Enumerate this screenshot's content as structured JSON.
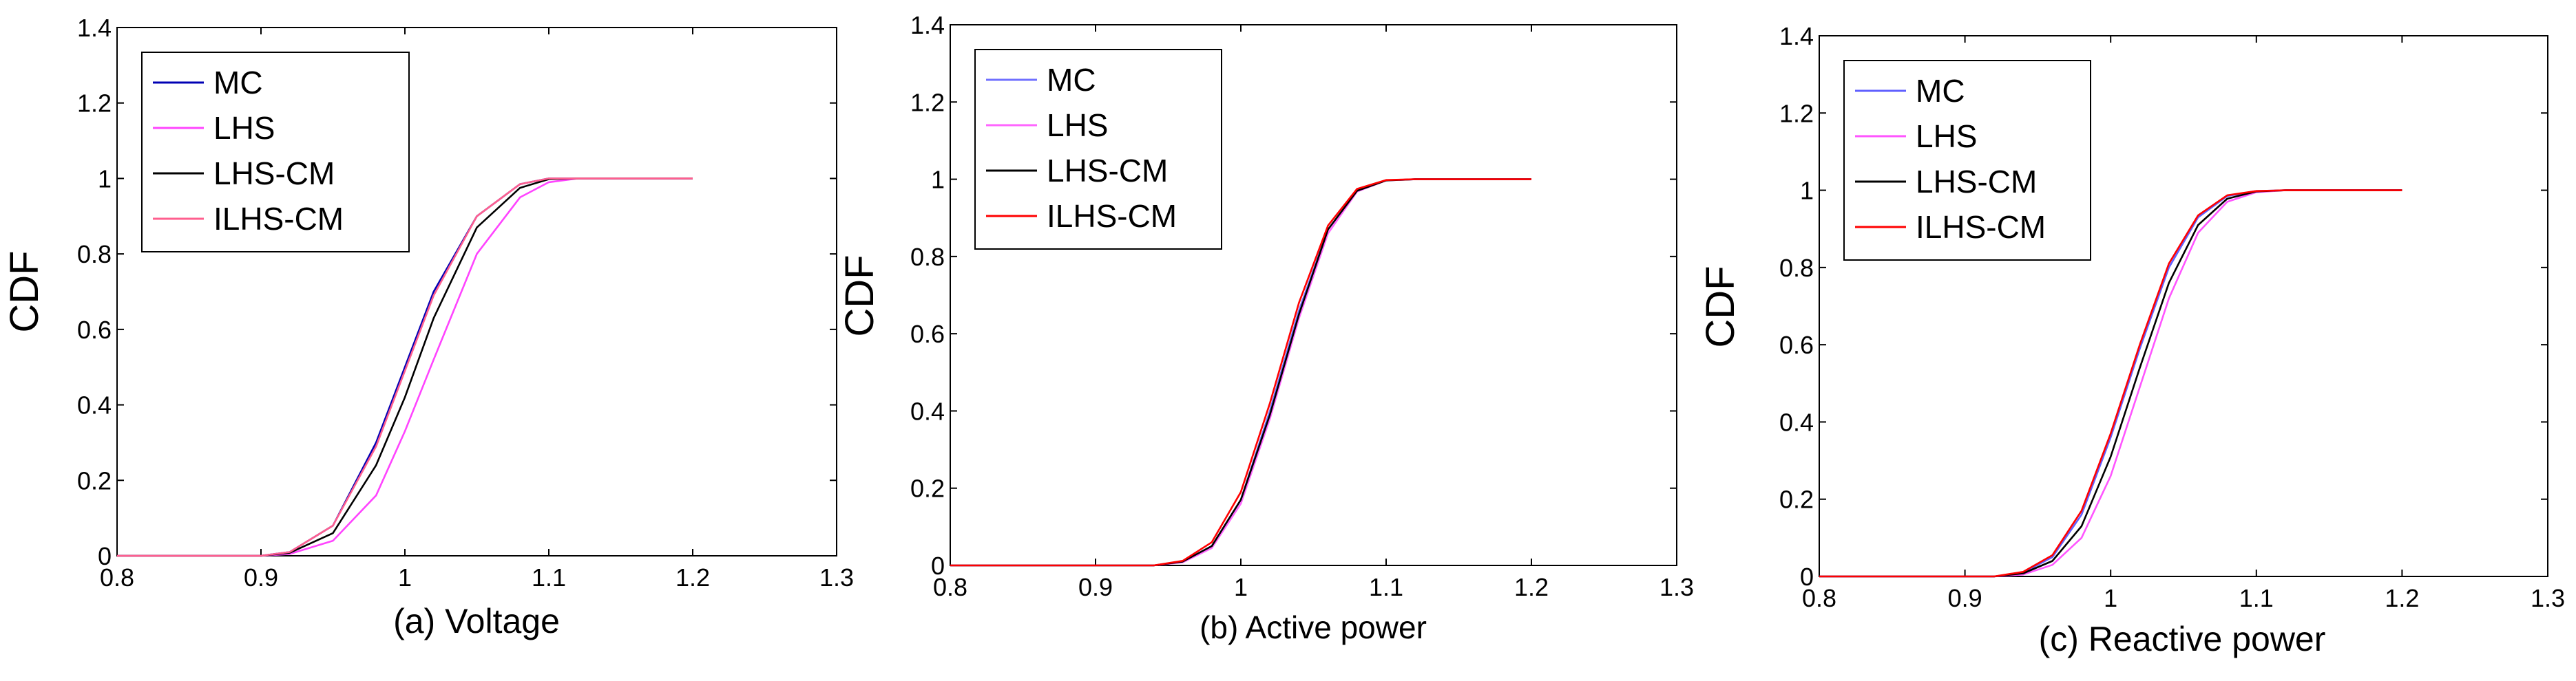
{
  "chart_data": [
    {
      "type": "line",
      "title": "",
      "caption": "(a) Voltage",
      "ylabel": "CDF",
      "xlim": [
        0.8,
        1.3
      ],
      "ylim": [
        0,
        1.4
      ],
      "xticks": [
        "0.8",
        "0.9",
        "1",
        "1.1",
        "1.2",
        "1.3"
      ],
      "yticks": [
        "0",
        "0.2",
        "0.4",
        "0.6",
        "0.8",
        "1",
        "1.2",
        "1.4"
      ],
      "grid": false,
      "legend_position": "top-left",
      "series": [
        {
          "name": "MC",
          "color": "#0000b4",
          "x": [
            0.8,
            0.9,
            0.92,
            0.95,
            0.98,
            1.0,
            1.02,
            1.05,
            1.08,
            1.1,
            1.12,
            1.2
          ],
          "y": [
            0,
            0,
            0.01,
            0.08,
            0.3,
            0.5,
            0.7,
            0.9,
            0.985,
            1.0,
            1.0,
            1.0
          ]
        },
        {
          "name": "LHS",
          "color": "#ff44ff",
          "x": [
            0.8,
            0.9,
            0.92,
            0.95,
            0.98,
            1.0,
            1.02,
            1.05,
            1.08,
            1.1,
            1.12,
            1.2
          ],
          "y": [
            0,
            0,
            0.005,
            0.04,
            0.16,
            0.33,
            0.52,
            0.8,
            0.95,
            0.99,
            1.0,
            1.0
          ]
        },
        {
          "name": "LHS-CM",
          "color": "#000000",
          "x": [
            0.8,
            0.9,
            0.92,
            0.95,
            0.98,
            1.0,
            1.02,
            1.05,
            1.08,
            1.1,
            1.12,
            1.2
          ],
          "y": [
            0,
            0,
            0.008,
            0.06,
            0.24,
            0.42,
            0.63,
            0.87,
            0.975,
            0.998,
            1.0,
            1.0
          ]
        },
        {
          "name": "ILHS-CM",
          "color": "#ff5f8f",
          "x": [
            0.8,
            0.9,
            0.92,
            0.95,
            0.98,
            1.0,
            1.02,
            1.05,
            1.08,
            1.1,
            1.12,
            1.2
          ],
          "y": [
            0,
            0,
            0.01,
            0.08,
            0.29,
            0.49,
            0.69,
            0.9,
            0.985,
            1.0,
            1.0,
            1.0
          ]
        }
      ]
    },
    {
      "type": "line",
      "title": "",
      "caption": "(b) Active power",
      "ylabel": "CDF",
      "xlim": [
        0.8,
        1.3
      ],
      "ylim": [
        0,
        1.4
      ],
      "xticks": [
        "0.8",
        "0.9",
        "1",
        "1.1",
        "1.2",
        "1.3"
      ],
      "yticks": [
        "0",
        "0.2",
        "0.4",
        "0.6",
        "0.8",
        "1",
        "1.2",
        "1.4"
      ],
      "grid": false,
      "legend_position": "top-left",
      "series": [
        {
          "name": "MC",
          "color": "#7070ff",
          "x": [
            0.8,
            0.94,
            0.96,
            0.98,
            1.0,
            1.02,
            1.04,
            1.06,
            1.08,
            1.1,
            1.12,
            1.2
          ],
          "y": [
            0,
            0,
            0.01,
            0.05,
            0.17,
            0.4,
            0.66,
            0.87,
            0.97,
            0.997,
            1.0,
            1.0
          ]
        },
        {
          "name": "LHS",
          "color": "#ff66ff",
          "x": [
            0.8,
            0.94,
            0.96,
            0.98,
            1.0,
            1.02,
            1.04,
            1.06,
            1.08,
            1.1,
            1.12,
            1.2
          ],
          "y": [
            0,
            0,
            0.008,
            0.045,
            0.16,
            0.38,
            0.64,
            0.86,
            0.968,
            0.997,
            1.0,
            1.0
          ]
        },
        {
          "name": "LHS-CM",
          "color": "#000000",
          "x": [
            0.8,
            0.94,
            0.96,
            0.98,
            1.0,
            1.02,
            1.04,
            1.06,
            1.08,
            1.1,
            1.12,
            1.2
          ],
          "y": [
            0,
            0,
            0.01,
            0.05,
            0.17,
            0.39,
            0.65,
            0.87,
            0.97,
            0.997,
            1.0,
            1.0
          ]
        },
        {
          "name": "ILHS-CM",
          "color": "#ff0000",
          "x": [
            0.8,
            0.94,
            0.96,
            0.98,
            1.0,
            1.02,
            1.04,
            1.06,
            1.08,
            1.1,
            1.12,
            1.2
          ],
          "y": [
            0,
            0,
            0.012,
            0.06,
            0.19,
            0.42,
            0.68,
            0.88,
            0.975,
            0.998,
            1.0,
            1.0
          ]
        }
      ]
    },
    {
      "type": "line",
      "title": "",
      "caption": "(c) Reactive power",
      "ylabel": "CDF",
      "xlim": [
        0.8,
        1.3
      ],
      "ylim": [
        0,
        1.4
      ],
      "xticks": [
        "0.8",
        "0.9",
        "1",
        "1.1",
        "1.2",
        "1.3"
      ],
      "yticks": [
        "0",
        "0.2",
        "0.4",
        "0.6",
        "0.8",
        "1",
        "1.2",
        "1.4"
      ],
      "grid": false,
      "legend_position": "top-left",
      "series": [
        {
          "name": "MC",
          "color": "#6060ff",
          "x": [
            0.8,
            0.92,
            0.94,
            0.96,
            0.98,
            1.0,
            1.02,
            1.04,
            1.06,
            1.08,
            1.1,
            1.12,
            1.2
          ],
          "y": [
            0,
            0,
            0.01,
            0.05,
            0.16,
            0.36,
            0.59,
            0.8,
            0.93,
            0.985,
            0.998,
            1.0,
            1.0
          ]
        },
        {
          "name": "LHS",
          "color": "#ff55ff",
          "x": [
            0.8,
            0.92,
            0.94,
            0.96,
            0.98,
            1.0,
            1.02,
            1.04,
            1.06,
            1.08,
            1.1,
            1.12,
            1.2
          ],
          "y": [
            0,
            0,
            0.005,
            0.03,
            0.1,
            0.26,
            0.49,
            0.72,
            0.89,
            0.97,
            0.995,
            1.0,
            1.0
          ]
        },
        {
          "name": "LHS-CM",
          "color": "#000000",
          "x": [
            0.8,
            0.92,
            0.94,
            0.96,
            0.98,
            1.0,
            1.02,
            1.04,
            1.06,
            1.08,
            1.1,
            1.12,
            1.2
          ],
          "y": [
            0,
            0,
            0.008,
            0.04,
            0.13,
            0.31,
            0.54,
            0.76,
            0.91,
            0.978,
            0.997,
            1.0,
            1.0
          ]
        },
        {
          "name": "ILHS-CM",
          "color": "#ff0000",
          "x": [
            0.8,
            0.92,
            0.94,
            0.96,
            0.98,
            1.0,
            1.02,
            1.04,
            1.06,
            1.08,
            1.1,
            1.12,
            1.2
          ],
          "y": [
            0,
            0,
            0.012,
            0.055,
            0.17,
            0.37,
            0.6,
            0.81,
            0.935,
            0.987,
            0.998,
            1.0,
            1.0
          ]
        }
      ]
    }
  ]
}
